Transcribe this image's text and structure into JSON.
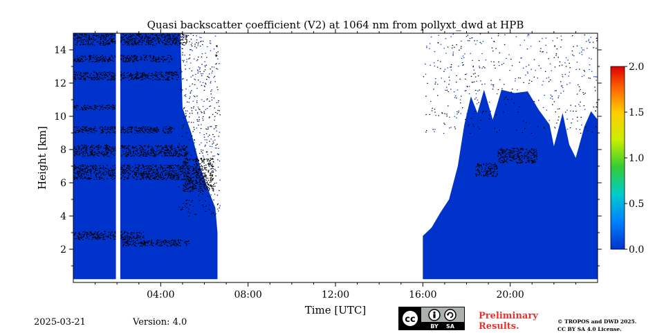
{
  "chart_data": {
    "type": "heatmap",
    "title": "Quasi backscatter coefficient (V2) at 1064 nm from pollyxt_dwd at HPB",
    "xlabel": "Time [UTC]",
    "ylabel": "Height [km]",
    "xlim": [
      0,
      24
    ],
    "ylim": [
      0,
      15
    ],
    "x_ticks": [
      {
        "value": 4,
        "label": "04:00"
      },
      {
        "value": 8,
        "label": "08:00"
      },
      {
        "value": 12,
        "label": "12:00"
      },
      {
        "value": 16,
        "label": "16:00"
      },
      {
        "value": 20,
        "label": "20:00"
      }
    ],
    "y_ticks": [
      {
        "value": 2,
        "label": "2"
      },
      {
        "value": 4,
        "label": "4"
      },
      {
        "value": 6,
        "label": "6"
      },
      {
        "value": 8,
        "label": "8"
      },
      {
        "value": 10,
        "label": "10"
      },
      {
        "value": 12,
        "label": "12"
      },
      {
        "value": 14,
        "label": "14"
      }
    ],
    "colorbar": {
      "min": 0.0,
      "max": 2.0,
      "ticks": [
        "0.0",
        "0.5",
        "1.0",
        "1.5",
        "2.0"
      ],
      "colormap": [
        "#0033cc",
        "#0080ff",
        "#00cccc",
        "#33cc33",
        "#ccee00",
        "#ffcc00",
        "#ff6600",
        "#dd0000"
      ]
    },
    "observation_segments": [
      {
        "start": 0.0,
        "end": 6.6,
        "fill_top_km": 15.0
      },
      {
        "start": 16.0,
        "end": 24.0,
        "fill_top_km": 11.0
      }
    ],
    "data_gap": {
      "start": 1.95,
      "end": 2.15
    },
    "envelope_morning": [
      {
        "t": 0.0,
        "h": 15.0
      },
      {
        "t": 4.9,
        "h": 15.0
      },
      {
        "t": 5.0,
        "h": 10.5
      },
      {
        "t": 5.4,
        "h": 9.0
      },
      {
        "t": 5.8,
        "h": 7.0
      },
      {
        "t": 6.2,
        "h": 5.5
      },
      {
        "t": 6.5,
        "h": 4.5
      },
      {
        "t": 6.6,
        "h": 3.0
      }
    ],
    "envelope_evening": [
      {
        "t": 16.0,
        "h": 2.8
      },
      {
        "t": 16.4,
        "h": 3.3
      },
      {
        "t": 16.8,
        "h": 4.2
      },
      {
        "t": 17.2,
        "h": 5.0
      },
      {
        "t": 17.6,
        "h": 7.0
      },
      {
        "t": 17.9,
        "h": 9.5
      },
      {
        "t": 18.2,
        "h": 11.2
      },
      {
        "t": 18.5,
        "h": 10.2
      },
      {
        "t": 18.8,
        "h": 11.6
      },
      {
        "t": 19.2,
        "h": 9.8
      },
      {
        "t": 19.6,
        "h": 11.6
      },
      {
        "t": 20.2,
        "h": 11.4
      },
      {
        "t": 20.8,
        "h": 11.5
      },
      {
        "t": 21.3,
        "h": 10.4
      },
      {
        "t": 21.8,
        "h": 9.5
      },
      {
        "t": 22.0,
        "h": 8.2
      },
      {
        "t": 22.4,
        "h": 10.2
      },
      {
        "t": 22.7,
        "h": 8.3
      },
      {
        "t": 23.0,
        "h": 7.5
      },
      {
        "t": 23.4,
        "h": 9.4
      },
      {
        "t": 23.7,
        "h": 10.3
      },
      {
        "t": 24.0,
        "h": 9.8
      }
    ],
    "dark_layers": [
      {
        "t0": 0.0,
        "t1": 5.0,
        "h0": 6.2,
        "h1": 7.1
      },
      {
        "t0": 0.0,
        "t1": 5.2,
        "h0": 7.6,
        "h1": 8.3
      },
      {
        "t0": 0.0,
        "t1": 4.6,
        "h0": 9.0,
        "h1": 9.4
      },
      {
        "t0": 0.0,
        "t1": 2.0,
        "h0": 10.4,
        "h1": 10.7
      },
      {
        "t0": 0.0,
        "t1": 4.8,
        "h0": 12.2,
        "h1": 12.7
      },
      {
        "t0": 0.0,
        "t1": 4.5,
        "h0": 13.3,
        "h1": 13.7
      },
      {
        "t0": 0.0,
        "t1": 5.2,
        "h0": 14.3,
        "h1": 15.0
      },
      {
        "t0": 0.0,
        "t1": 3.2,
        "h0": 2.6,
        "h1": 3.1
      },
      {
        "t0": 2.2,
        "t1": 5.3,
        "h0": 2.2,
        "h1": 2.6
      },
      {
        "t0": 5.0,
        "t1": 6.4,
        "h0": 5.5,
        "h1": 7.5
      },
      {
        "t0": 18.4,
        "t1": 19.4,
        "h0": 6.4,
        "h1": 7.2
      },
      {
        "t0": 19.4,
        "t1": 21.2,
        "h0": 7.2,
        "h1": 8.1
      }
    ]
  },
  "footer": {
    "date": "2025-03-21",
    "version": "Version: 4.0",
    "license_badge": [
      "BY",
      "SA"
    ],
    "preliminary": "Preliminary Results.",
    "copyright_line1": "© TROPOS and DWD 2025.",
    "copyright_line2": "CC BY SA 4.0 License."
  }
}
